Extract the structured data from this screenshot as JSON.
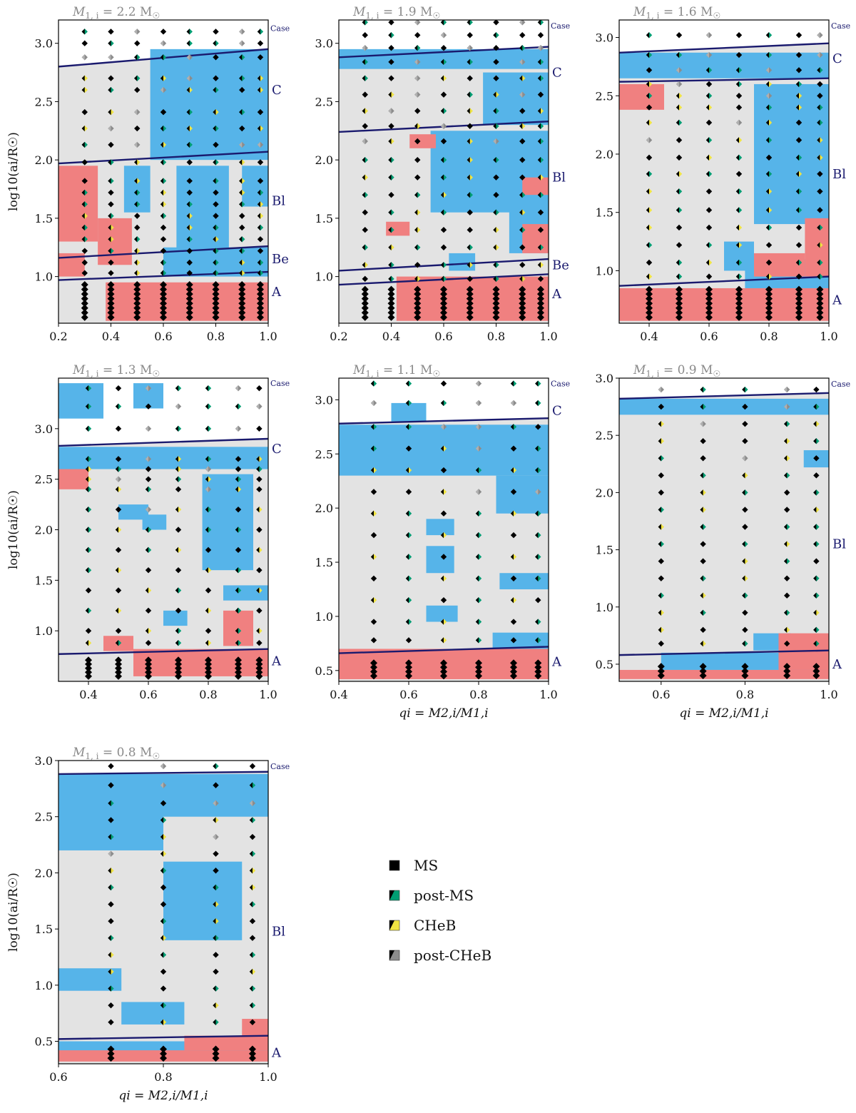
{
  "figure": {
    "case_word": "Case"
  },
  "colors": {
    "background_region": "#e3e3e3",
    "blue_region": "#56b4e9",
    "red_region": "#f08080",
    "boundary": "#1a1a6e",
    "ms": "#000000",
    "post_ms": "#009e73",
    "cheb": "#f0e442",
    "post_cheb": "#8c8c8c"
  },
  "legend": [
    {
      "key": "ms",
      "label": "MS"
    },
    {
      "key": "post_ms",
      "label": "post-MS"
    },
    {
      "key": "cheb",
      "label": "CHeB"
    },
    {
      "key": "post_cheb",
      "label": "post-CHeB"
    }
  ],
  "chart_data": [
    {
      "type": "scatter",
      "title": "M1,i = 2.2 M☉",
      "title_parts": {
        "mass": "M",
        "sub": "1, i",
        "eq": " = 2.2 M",
        "sun": "☉"
      },
      "xlabel": "",
      "ylabel": "log10(ai/R☉)",
      "xlim": [
        0.2,
        1.0
      ],
      "ylim": [
        0.6,
        3.2
      ],
      "xticks": [
        "0.2",
        "0.4",
        "0.6",
        "0.8",
        "1.0"
      ],
      "xtick_values": [
        0.2,
        0.4,
        0.6,
        0.8,
        1.0
      ],
      "yticks": [
        "1.0",
        "1.5",
        "2.0",
        "2.5",
        "3.0"
      ],
      "ytick_values": [
        1.0,
        1.5,
        2.0,
        2.5,
        3.0
      ],
      "q_grid": [
        0.3,
        0.4,
        0.5,
        0.6,
        0.7,
        0.8,
        0.9,
        0.97
      ],
      "boundaries": [
        {
          "case": "C",
          "y": 2.8,
          "y_end": 2.95,
          "label_y": 2.6
        },
        {
          "case": "Bl",
          "y": 1.97,
          "y_end": 2.07,
          "label_y": 1.65
        },
        {
          "case": "Be",
          "y": 1.16,
          "y_end": 1.26,
          "label_y": 1.15
        },
        {
          "case": "A",
          "y": 0.97,
          "y_end": 1.04,
          "label_y": 0.87
        }
      ],
      "case_word_y": 3.13,
      "blue_regions": [
        [
          0.55,
          2.0,
          1.0,
          2.95
        ],
        [
          0.65,
          1.2,
          0.85,
          1.95
        ],
        [
          0.45,
          1.55,
          0.55,
          1.95
        ],
        [
          0.9,
          1.6,
          1.0,
          1.95
        ],
        [
          0.6,
          1.0,
          1.0,
          1.25
        ]
      ],
      "red_regions": [
        [
          0.2,
          1.3,
          0.35,
          1.95
        ],
        [
          0.35,
          1.1,
          0.48,
          1.5
        ],
        [
          0.2,
          1.0,
          0.3,
          1.2
        ],
        [
          0.38,
          0.62,
          1.0,
          0.95
        ]
      ],
      "dense_y_max": 0.95,
      "scatter_rows": [
        3.1,
        3.0,
        2.88,
        2.7,
        2.6,
        2.41,
        2.27,
        2.13,
        1.98,
        1.82,
        1.72,
        1.62,
        1.52,
        1.42,
        1.32,
        1.22,
        1.12,
        1.03
      ]
    },
    {
      "type": "scatter",
      "title": "M1,i = 1.9 M☉",
      "title_parts": {
        "mass": "M",
        "sub": "1, i",
        "eq": " = 1.9 M",
        "sun": "☉"
      },
      "xlabel": "",
      "ylabel": "",
      "xlim": [
        0.2,
        1.0
      ],
      "ylim": [
        0.6,
        3.2
      ],
      "xticks": [
        "0.2",
        "0.4",
        "0.6",
        "0.8",
        "1.0"
      ],
      "xtick_values": [
        0.2,
        0.4,
        0.6,
        0.8,
        1.0
      ],
      "yticks": [
        "1.0",
        "1.5",
        "2.0",
        "2.5",
        "3.0"
      ],
      "ytick_values": [
        1.0,
        1.5,
        2.0,
        2.5,
        3.0
      ],
      "q_grid": [
        0.3,
        0.4,
        0.5,
        0.6,
        0.7,
        0.8,
        0.9,
        0.97
      ],
      "boundaries": [
        {
          "case": "C",
          "y": 2.88,
          "y_end": 2.97,
          "label_y": 2.75
        },
        {
          "case": "Bl",
          "y": 2.24,
          "y_end": 2.33,
          "label_y": 1.85
        },
        {
          "case": "Be",
          "y": 1.05,
          "y_end": 1.15,
          "label_y": 1.1
        },
        {
          "case": "A",
          "y": 0.93,
          "y_end": 1.02,
          "label_y": 0.85
        }
      ],
      "case_word_y": 3.15,
      "blue_regions": [
        [
          0.2,
          2.78,
          1.0,
          2.95
        ],
        [
          0.75,
          2.3,
          1.0,
          2.75
        ],
        [
          0.55,
          1.55,
          1.0,
          2.25
        ],
        [
          0.85,
          1.2,
          1.0,
          1.6
        ],
        [
          0.62,
          1.05,
          0.72,
          1.2
        ]
      ],
      "red_regions": [
        [
          0.47,
          2.1,
          0.57,
          2.22
        ],
        [
          0.38,
          1.35,
          0.47,
          1.47
        ],
        [
          0.9,
          1.7,
          1.0,
          1.85
        ],
        [
          0.9,
          1.2,
          1.0,
          1.45
        ],
        [
          0.42,
          0.62,
          1.0,
          1.0
        ]
      ],
      "dense_y_max": 0.9,
      "scatter_rows": [
        3.18,
        3.07,
        2.96,
        2.84,
        2.7,
        2.56,
        2.42,
        2.29,
        2.16,
        2.0,
        1.85,
        1.7,
        1.55,
        1.4,
        1.25,
        1.1,
        0.98
      ]
    },
    {
      "type": "scatter",
      "title": "M1,i = 1.6 M☉",
      "title_parts": {
        "mass": "M",
        "sub": "1, i",
        "eq": " = 1.6 M",
        "sun": "☉"
      },
      "xlabel": "",
      "ylabel": "",
      "xlim": [
        0.3,
        1.0
      ],
      "ylim": [
        0.55,
        3.15
      ],
      "xticks": [
        "0.4",
        "0.6",
        "0.8",
        "1.0"
      ],
      "xtick_values": [
        0.4,
        0.6,
        0.8,
        1.0
      ],
      "yticks": [
        "1.0",
        "1.5",
        "2.0",
        "2.5",
        "3.0"
      ],
      "ytick_values": [
        1.0,
        1.5,
        2.0,
        2.5,
        3.0
      ],
      "q_grid": [
        0.4,
        0.5,
        0.6,
        0.7,
        0.8,
        0.9,
        0.97
      ],
      "boundaries": [
        {
          "case": "C",
          "y": 2.87,
          "y_end": 2.95,
          "label_y": 2.82
        },
        {
          "case": "Bl",
          "y": 2.62,
          "y_end": 2.65,
          "label_y": 1.83
        },
        {
          "case": "A",
          "y": 0.87,
          "y_end": 0.95,
          "label_y": 0.75
        }
      ],
      "case_word_y": 3.1,
      "blue_regions": [
        [
          0.3,
          2.65,
          1.0,
          2.87
        ],
        [
          0.75,
          1.4,
          1.0,
          2.6
        ],
        [
          0.65,
          1.0,
          0.75,
          1.25
        ],
        [
          0.72,
          0.85,
          1.0,
          1.1
        ]
      ],
      "red_regions": [
        [
          0.3,
          2.38,
          0.45,
          2.6
        ],
        [
          0.75,
          0.95,
          0.92,
          1.15
        ],
        [
          0.92,
          0.95,
          1.0,
          1.45
        ],
        [
          0.3,
          0.57,
          1.0,
          0.85
        ]
      ],
      "dense_y_max": 0.85,
      "scatter_rows": [
        3.02,
        2.85,
        2.72,
        2.6,
        2.5,
        2.4,
        2.27,
        2.12,
        1.97,
        1.83,
        1.68,
        1.52,
        1.37,
        1.22,
        1.07,
        0.95
      ]
    },
    {
      "type": "scatter",
      "title": "M1,i = 1.3 M☉",
      "title_parts": {
        "mass": "M",
        "sub": "1, i",
        "eq": " = 1.3 M",
        "sun": "☉"
      },
      "xlabel": "",
      "ylabel": "log10(ai/R☉)",
      "xlim": [
        0.3,
        1.0
      ],
      "ylim": [
        0.5,
        3.5
      ],
      "xticks": [
        "0.4",
        "0.6",
        "0.8",
        "1.0"
      ],
      "xtick_values": [
        0.4,
        0.6,
        0.8,
        1.0
      ],
      "yticks": [
        "1.0",
        "1.5",
        "2.0",
        "2.5",
        "3.0"
      ],
      "ytick_values": [
        1.0,
        1.5,
        2.0,
        2.5,
        3.0
      ],
      "q_grid": [
        0.4,
        0.5,
        0.6,
        0.7,
        0.8,
        0.9,
        0.97
      ],
      "boundaries": [
        {
          "case": "C",
          "y": 2.83,
          "y_end": 2.9,
          "label_y": 2.8
        },
        {
          "case": "A",
          "y": 0.77,
          "y_end": 0.82,
          "label_y": 0.7
        }
      ],
      "case_word_y": 3.45,
      "blue_regions": [
        [
          0.3,
          3.1,
          0.45,
          3.45
        ],
        [
          0.55,
          3.2,
          0.65,
          3.45
        ],
        [
          0.3,
          2.6,
          1.0,
          2.82
        ],
        [
          0.78,
          1.6,
          0.95,
          2.55
        ],
        [
          0.58,
          2.0,
          0.66,
          2.15
        ],
        [
          0.5,
          2.1,
          0.6,
          2.25
        ],
        [
          0.65,
          1.05,
          0.73,
          1.2
        ],
        [
          0.85,
          1.3,
          1.0,
          1.45
        ]
      ],
      "red_regions": [
        [
          0.3,
          2.4,
          0.4,
          2.6
        ],
        [
          0.45,
          0.8,
          0.55,
          0.95
        ],
        [
          0.85,
          0.85,
          0.95,
          1.2
        ],
        [
          0.55,
          0.55,
          1.0,
          0.82
        ]
      ],
      "dense_y_max": 0.75,
      "scatter_rows": [
        3.4,
        3.22,
        3.0,
        2.7,
        2.6,
        2.5,
        2.4,
        2.2,
        2.0,
        1.8,
        1.6,
        1.4,
        1.2,
        1.0,
        0.88
      ]
    },
    {
      "type": "scatter",
      "title": "M1,i = 1.1 M☉",
      "title_parts": {
        "mass": "M",
        "sub": "1, i",
        "eq": " = 1.1 M",
        "sun": "☉"
      },
      "xlabel": "qi = M2,i/M1,i",
      "ylabel": "",
      "xlim": [
        0.4,
        1.0
      ],
      "ylim": [
        0.4,
        3.2
      ],
      "xticks": [
        "0.4",
        "0.6",
        "0.8",
        "1.0"
      ],
      "xtick_values": [
        0.4,
        0.6,
        0.8,
        1.0
      ],
      "yticks": [
        "0.5",
        "1.0",
        "1.5",
        "2.0",
        "2.5",
        "3.0"
      ],
      "ytick_values": [
        0.5,
        1.0,
        1.5,
        2.0,
        2.5,
        3.0
      ],
      "q_grid": [
        0.5,
        0.6,
        0.7,
        0.8,
        0.9,
        0.97
      ],
      "boundaries": [
        {
          "case": "C",
          "y": 2.78,
          "y_end": 2.83,
          "label_y": 2.9
        },
        {
          "case": "A",
          "y": 0.66,
          "y_end": 0.72,
          "label_y": 0.58
        }
      ],
      "case_word_y": 3.15,
      "blue_regions": [
        [
          0.4,
          2.3,
          1.0,
          2.77
        ],
        [
          0.55,
          2.8,
          0.65,
          2.97
        ],
        [
          0.85,
          1.95,
          1.0,
          2.3
        ],
        [
          0.65,
          1.75,
          0.73,
          1.9
        ],
        [
          0.65,
          1.4,
          0.73,
          1.65
        ],
        [
          0.86,
          1.25,
          1.0,
          1.4
        ],
        [
          0.65,
          0.95,
          0.74,
          1.1
        ],
        [
          0.84,
          0.7,
          1.0,
          0.85
        ]
      ],
      "red_regions": [
        [
          0.4,
          0.42,
          1.0,
          0.7
        ]
      ],
      "dense_y_max": 0.6,
      "scatter_rows": [
        3.15,
        2.97,
        2.75,
        2.55,
        2.35,
        2.15,
        1.95,
        1.75,
        1.55,
        1.35,
        1.15,
        0.95,
        0.78
      ]
    },
    {
      "type": "scatter",
      "title": "M1,i = 0.9 M☉",
      "title_parts": {
        "mass": "M",
        "sub": "1, i",
        "eq": " = 0.9 M",
        "sun": "☉"
      },
      "xlabel": "qi = M2,i/M1,i",
      "ylabel": "",
      "xlim": [
        0.5,
        1.0
      ],
      "ylim": [
        0.35,
        3.0
      ],
      "xticks": [
        "0.6",
        "0.8",
        "1.0"
      ],
      "xtick_values": [
        0.6,
        0.8,
        1.0
      ],
      "yticks": [
        "0.5",
        "1.0",
        "1.5",
        "2.0",
        "2.5",
        "3.0"
      ],
      "ytick_values": [
        0.5,
        1.0,
        1.5,
        2.0,
        2.5,
        3.0
      ],
      "q_grid": [
        0.6,
        0.7,
        0.8,
        0.9,
        0.97
      ],
      "boundaries": [
        {
          "case": "Bl",
          "y": 2.82,
          "y_end": 2.87,
          "label_y": 1.55
        },
        {
          "case": "A",
          "y": 0.58,
          "y_end": 0.62,
          "label_y": 0.5
        }
      ],
      "case_word_y": 2.95,
      "blue_regions": [
        [
          0.5,
          2.68,
          1.0,
          2.82
        ],
        [
          0.94,
          2.22,
          1.0,
          2.37
        ],
        [
          0.82,
          0.62,
          0.91,
          0.77
        ],
        [
          0.6,
          0.45,
          1.0,
          0.6
        ]
      ],
      "red_regions": [
        [
          0.5,
          0.37,
          1.0,
          0.45
        ],
        [
          0.88,
          0.45,
          1.0,
          0.77
        ]
      ],
      "dense_y_max": 0.5,
      "scatter_rows": [
        2.9,
        2.75,
        2.6,
        2.45,
        2.3,
        2.15,
        2.0,
        1.85,
        1.7,
        1.55,
        1.4,
        1.25,
        1.1,
        0.95,
        0.8,
        0.68
      ]
    },
    {
      "type": "scatter",
      "title": "M1,i = 0.8 M☉",
      "title_parts": {
        "mass": "M",
        "sub": "1, i",
        "eq": " = 0.8 M",
        "sun": "☉"
      },
      "xlabel": "qi = M2,i/M1,i",
      "ylabel": "log10(ai/R☉)",
      "xlim": [
        0.6,
        1.0
      ],
      "ylim": [
        0.3,
        3.0
      ],
      "xticks": [
        "0.6",
        "0.8",
        "1.0"
      ],
      "xtick_values": [
        0.6,
        0.8,
        1.0
      ],
      "yticks": [
        "0.5",
        "1.0",
        "1.5",
        "2.0",
        "2.5",
        "3.0"
      ],
      "ytick_values": [
        0.5,
        1.0,
        1.5,
        2.0,
        2.5,
        3.0
      ],
      "q_grid": [
        0.7,
        0.8,
        0.9,
        0.97
      ],
      "boundaries": [
        {
          "case": "Bl",
          "y": 2.88,
          "y_end": 2.9,
          "label_y": 1.48
        },
        {
          "case": "A",
          "y": 0.52,
          "y_end": 0.55,
          "label_y": 0.4
        }
      ],
      "case_word_y": 2.95,
      "blue_regions": [
        [
          0.6,
          2.2,
          0.8,
          2.88
        ],
        [
          0.8,
          2.5,
          1.0,
          2.88
        ],
        [
          0.8,
          1.4,
          0.95,
          2.1
        ],
        [
          0.6,
          0.95,
          0.72,
          1.15
        ],
        [
          0.72,
          0.65,
          0.84,
          0.85
        ],
        [
          0.6,
          0.4,
          1.0,
          0.5
        ]
      ],
      "red_regions": [
        [
          0.6,
          0.32,
          1.0,
          0.42
        ],
        [
          0.84,
          0.42,
          1.0,
          0.55
        ],
        [
          0.95,
          0.55,
          1.0,
          0.7
        ]
      ],
      "dense_y_max": 0.45,
      "scatter_rows": [
        2.95,
        2.78,
        2.62,
        2.47,
        2.32,
        2.17,
        2.02,
        1.87,
        1.72,
        1.57,
        1.42,
        1.27,
        1.12,
        0.97,
        0.82,
        0.67
      ]
    }
  ]
}
